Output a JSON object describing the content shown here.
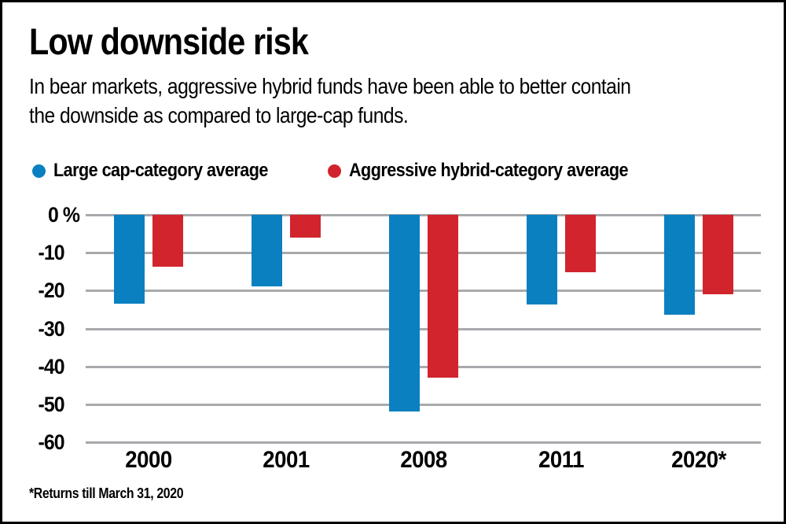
{
  "title": "Low downside risk",
  "subtitle_lines": [
    "In bear markets, aggressive hybrid funds have been able to better contain",
    "the downside as compared to large-cap funds."
  ],
  "legend": [
    {
      "label": "Large cap-category average",
      "color": "#0a80c1"
    },
    {
      "label": "Aggressive hybrid-category average",
      "color": "#d2242c"
    }
  ],
  "footnote": "*Returns till March 31, 2020",
  "colors": {
    "large_cap_blue": "#0a80c1",
    "aggressive_hybrid_red": "#d2242c",
    "gridline_gray": "#a7a9ac",
    "border_black": "#000000",
    "background": "#ffffff"
  },
  "chart_data": {
    "type": "bar",
    "categories": [
      "2000",
      "2001",
      "2008",
      "2011",
      "2020*"
    ],
    "series": [
      {
        "name": "Large cap-category average",
        "color": "#0a80c1",
        "values": [
          -23.4,
          -18.8,
          -51.8,
          -23.7,
          -26.3
        ]
      },
      {
        "name": "Aggressive hybrid-category average",
        "color": "#d2242c",
        "values": [
          -13.6,
          -6.0,
          -43.0,
          -15.2,
          -21.0
        ]
      }
    ],
    "ylabel_ticks": [
      "0 %",
      "-10",
      "-20",
      "-30",
      "-40",
      "-50",
      "-60"
    ],
    "yticks": [
      0,
      -10,
      -20,
      -30,
      -40,
      -50,
      -60
    ],
    "ylim": [
      -60,
      0
    ],
    "unit": "percent",
    "grid": true,
    "legend_position": "top-left"
  }
}
